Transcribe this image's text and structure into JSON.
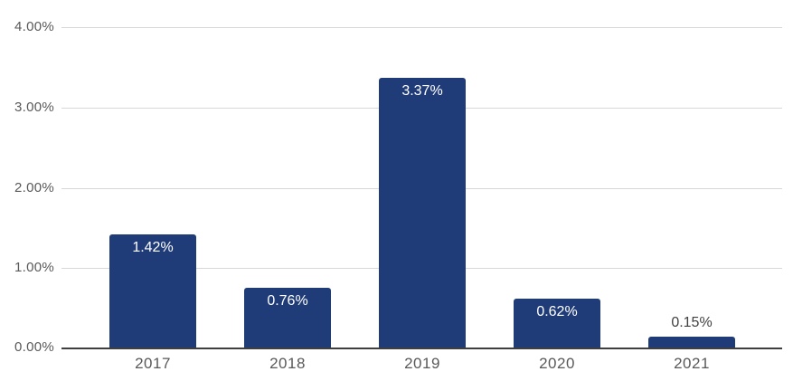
{
  "chart_data": {
    "type": "bar",
    "title": "",
    "xlabel": "",
    "ylabel": "",
    "categories": [
      "2017",
      "2018",
      "2019",
      "2020",
      "2021"
    ],
    "values": [
      1.42,
      0.76,
      3.37,
      0.62,
      0.15
    ],
    "display_labels": [
      "1.42%",
      "0.76%",
      "3.37%",
      "0.62%",
      "0.15%"
    ],
    "ylim": [
      0,
      4
    ],
    "ytick_step": 1,
    "ytick_labels": [
      "4.00%",
      "3.00%",
      "2.00%",
      "1.00%",
      "0.00%"
    ],
    "grid": true,
    "legend": false,
    "colors": {
      "bar": "#203c78",
      "gridline": "#d7d7d7",
      "axis_line": "#3f3f3f",
      "tick_text": "#595959",
      "label_inside": "#ffffff",
      "label_outside": "#404040"
    }
  }
}
